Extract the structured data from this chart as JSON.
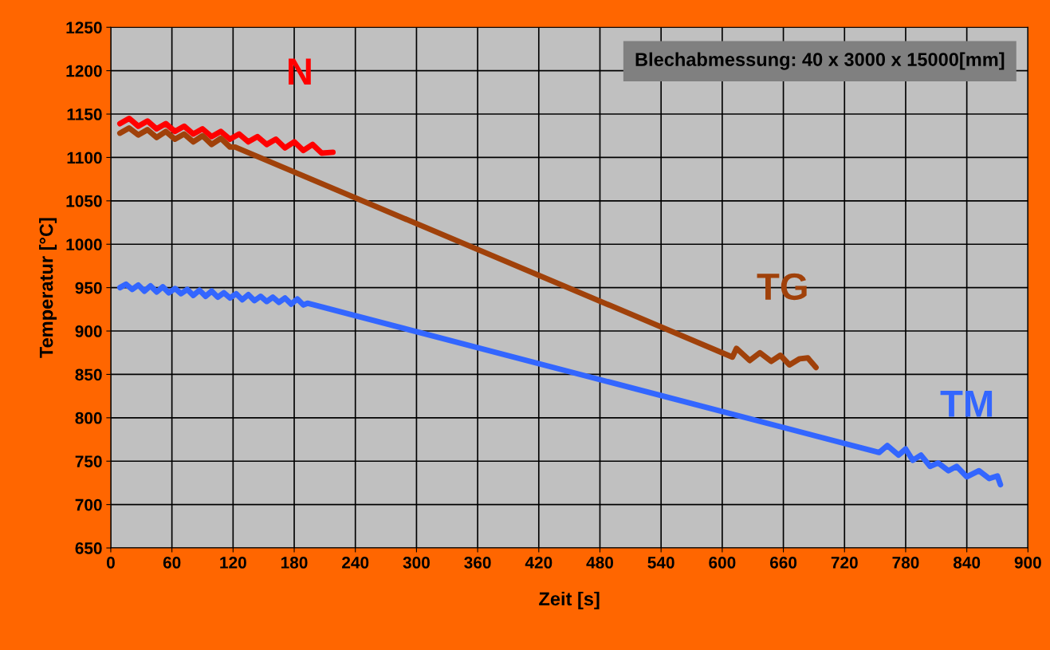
{
  "chart_data": {
    "type": "line",
    "xlabel": "Zeit [s]",
    "ylabel": "Temperatur [°C]",
    "annotations": [
      "Blechabmessung: 40 x 3000 x 15000[mm]"
    ],
    "xlim": [
      0,
      900
    ],
    "xticks": [
      0,
      60,
      120,
      180,
      240,
      300,
      360,
      420,
      480,
      540,
      600,
      660,
      720,
      780,
      840,
      900
    ],
    "ylim": [
      650,
      1250
    ],
    "yticks": [
      650,
      700,
      750,
      800,
      850,
      900,
      950,
      1000,
      1050,
      1100,
      1150,
      1200,
      1250
    ],
    "grid": true,
    "legend": false,
    "marker": "none",
    "line_style": "solid",
    "series": [
      {
        "name": "N",
        "color": "#ff0000",
        "x": [
          9,
          18,
          27,
          36,
          45,
          54,
          63,
          72,
          81,
          90,
          99,
          108,
          117,
          126,
          135,
          144,
          153,
          162,
          171,
          180,
          189,
          198,
          207,
          218
        ],
        "values": [
          1139,
          1145,
          1136,
          1142,
          1133,
          1139,
          1130,
          1136,
          1127,
          1133,
          1124,
          1130,
          1121,
          1127,
          1118,
          1124,
          1115,
          1121,
          1111,
          1118,
          1108,
          1115,
          1105,
          1106
        ]
      },
      {
        "name": "TG",
        "color": "#a0410a",
        "x": [
          9,
          18,
          27,
          36,
          45,
          54,
          63,
          72,
          81,
          90,
          99,
          108,
          117,
          122,
          610,
          614,
          627,
          637,
          648,
          657,
          666,
          676,
          684,
          692
        ],
        "values": [
          1128,
          1134,
          1126,
          1132,
          1123,
          1130,
          1121,
          1127,
          1118,
          1125,
          1115,
          1122,
          1112,
          1112,
          870,
          880,
          866,
          875,
          865,
          872,
          861,
          868,
          869,
          858
        ]
      },
      {
        "name": "TM",
        "color": "#3366ff",
        "x": [
          9,
          15,
          21,
          27,
          33,
          39,
          45,
          51,
          57,
          63,
          69,
          75,
          81,
          87,
          93,
          99,
          105,
          111,
          117,
          123,
          129,
          135,
          141,
          147,
          153,
          159,
          165,
          171,
          177,
          183,
          189,
          193,
          754,
          762,
          773,
          780,
          787,
          795,
          804,
          812,
          822,
          830,
          840,
          852,
          862,
          870,
          873
        ],
        "values": [
          950,
          954,
          948,
          953,
          946,
          952,
          945,
          951,
          944,
          949,
          943,
          948,
          941,
          947,
          940,
          946,
          939,
          944,
          938,
          943,
          936,
          942,
          935,
          940,
          934,
          939,
          933,
          938,
          931,
          937,
          930,
          932,
          760,
          768,
          757,
          764,
          751,
          757,
          744,
          748,
          739,
          744,
          732,
          739,
          730,
          733,
          723
        ]
      }
    ]
  }
}
